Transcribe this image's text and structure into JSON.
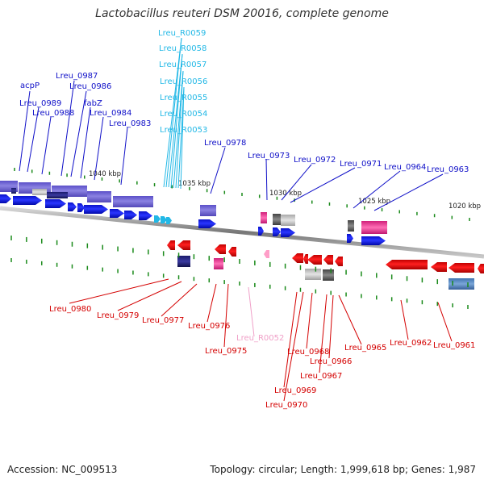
{
  "title": "Lactobacillus reuteri DSM 20016, complete genome",
  "footer": {
    "accession": "Accession: NC_009513",
    "topology": "Topology: circular; Length: 1,999,618 bp; Genes: 1,987"
  },
  "colors": {
    "forward_cds": "#0a14e0",
    "reverse_cds": "#e00000",
    "rna": "#22b8e6",
    "pseudo": "#ff5aa5",
    "forward_label": "#1010c8",
    "reverse_label": "#d40000",
    "rna_label": "#22b8e6",
    "pseudo_label": "#f0a0c8",
    "backbone": "#888888",
    "tick": "#1a8a1a"
  },
  "ticks": [
    "1040 kbp",
    "1035 kbp",
    "1030 kbp",
    "1025 kbp",
    "1020 kbp"
  ],
  "forward_labels": [
    "acpP",
    "Lreu_0989",
    "Lreu_0988",
    "Lreu_0987",
    "Lreu_0986",
    "fabZ",
    "Lreu_0984",
    "Lreu_0983",
    "Lreu_0978",
    "Lreu_0973",
    "Lreu_0972",
    "Lreu_0971",
    "Lreu_0964",
    "Lreu_0963"
  ],
  "rna_labels": [
    "Lreu_R0059",
    "Lreu_R0058",
    "Lreu_R0057",
    "Lreu_R0056",
    "Lreu_R0055",
    "Lreu_R0054",
    "Lreu_R0053"
  ],
  "reverse_labels": [
    "Lreu_0980",
    "Lreu_0979",
    "Lreu_0977",
    "Lreu_0976",
    "Lreu_0975",
    "Lreu_0968",
    "Lreu_0969",
    "Lreu_0970",
    "Lreu_0967",
    "Lreu_0966",
    "Lreu_0965",
    "Lreu_0962",
    "Lreu_0961"
  ],
  "pseudo_labels": [
    "Lreu_R0052"
  ]
}
